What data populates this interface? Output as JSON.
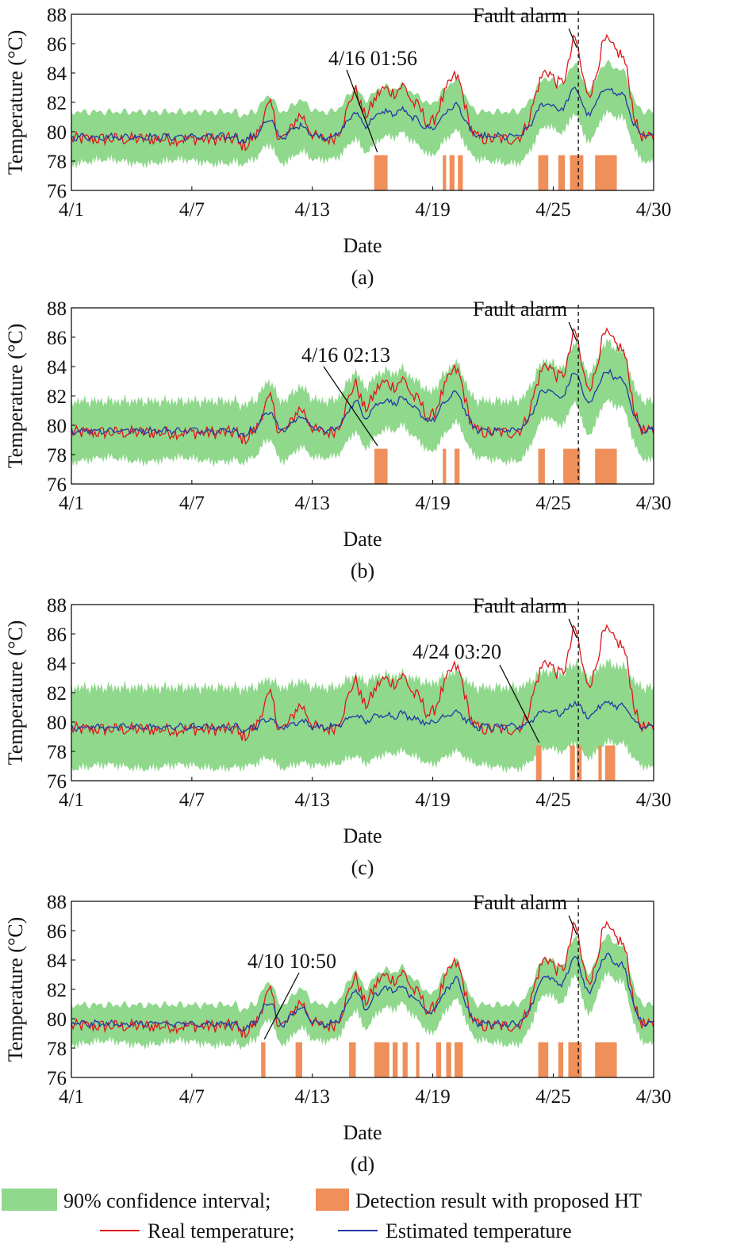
{
  "colors": {
    "band": "#8fd88c",
    "detection": "#ef8f5a",
    "real": "#e0151a",
    "estimated": "#2338a6",
    "axis": "#000000"
  },
  "legend": {
    "band_label": "90% confidence interval;",
    "detection_label": "Detection result with proposed HT",
    "real_label": "Real temperature;",
    "estimated_label": "Estimated temperature"
  },
  "chart_data": [
    {
      "type": "line",
      "panel_label": "(a)",
      "xlabel": "Date",
      "ylabel": "Temperature (°C)",
      "xlim": [
        "4/1",
        "4/30"
      ],
      "ylim": [
        76,
        88
      ],
      "xticks": [
        "4/1",
        "4/7",
        "4/13",
        "4/19",
        "4/25",
        "4/30"
      ],
      "yticks": [
        76,
        78,
        80,
        82,
        84,
        86,
        88
      ],
      "fault_alarm": {
        "label": "Fault alarm",
        "date": "4/26 06:00"
      },
      "annotation": {
        "label": "4/16 01:56",
        "date": "4/16 01:56"
      },
      "band_halfwidth": 1.7,
      "estimate_gain": 0.5,
      "detections": [
        [
          "4/16 01:56",
          "4/16 18:00"
        ],
        [
          "4/19 12:00",
          "4/19 16:00"
        ],
        [
          "4/19 20:00",
          "4/20 02:00"
        ],
        [
          "4/20 06:00",
          "4/20 12:00"
        ],
        [
          "4/24 06:00",
          "4/24 18:00"
        ],
        [
          "4/25 06:00",
          "4/25 14:00"
        ],
        [
          "4/25 20:00",
          "4/26 12:00"
        ],
        [
          "4/27 02:00",
          "4/28 04:00"
        ]
      ]
    },
    {
      "type": "line",
      "panel_label": "(b)",
      "xlabel": "Date",
      "ylabel": "Temperature (°C)",
      "xlim": [
        "4/1",
        "4/30"
      ],
      "ylim": [
        76,
        88
      ],
      "xticks": [
        "4/1",
        "4/7",
        "4/13",
        "4/19",
        "4/25",
        "4/30"
      ],
      "yticks": [
        76,
        78,
        80,
        82,
        84,
        86,
        88
      ],
      "fault_alarm": {
        "label": "Fault alarm",
        "date": "4/26 06:00"
      },
      "annotation": {
        "label": "4/16 02:13",
        "date": "4/16 02:13"
      },
      "band_halfwidth": 2.0,
      "estimate_gain": 0.6,
      "detections": [
        [
          "4/16 02:13",
          "4/16 18:00"
        ],
        [
          "4/19 12:00",
          "4/19 16:00"
        ],
        [
          "4/20 02:00",
          "4/20 08:00"
        ],
        [
          "4/24 06:00",
          "4/24 14:00"
        ],
        [
          "4/25 12:00",
          "4/26 08:00"
        ],
        [
          "4/27 02:00",
          "4/28 04:00"
        ]
      ]
    },
    {
      "type": "line",
      "panel_label": "(c)",
      "xlabel": "Date",
      "ylabel": "Temperature (°C)",
      "xlim": [
        "4/1",
        "4/30"
      ],
      "ylim": [
        76,
        88
      ],
      "xticks": [
        "4/1",
        "4/7",
        "4/13",
        "4/19",
        "4/25",
        "4/30"
      ],
      "yticks": [
        76,
        78,
        80,
        82,
        84,
        86,
        88
      ],
      "fault_alarm": {
        "label": "Fault alarm",
        "date": "4/26 06:00"
      },
      "annotation": {
        "label": "4/24 03:20",
        "date": "4/24 03:20"
      },
      "band_halfwidth": 2.7,
      "estimate_gain": 0.25,
      "detections": [
        [
          "4/24 03:20",
          "4/24 10:00"
        ],
        [
          "4/25 20:00",
          "4/26 02:00"
        ],
        [
          "4/26 04:00",
          "4/26 10:00"
        ],
        [
          "4/27 06:00",
          "4/27 10:00"
        ],
        [
          "4/27 14:00",
          "4/28 02:00"
        ]
      ]
    },
    {
      "type": "line",
      "panel_label": "(d)",
      "xlabel": "Date",
      "ylabel": "Temperature (°C)",
      "xlim": [
        "4/1",
        "4/30"
      ],
      "ylim": [
        76,
        88
      ],
      "xticks": [
        "4/1",
        "4/7",
        "4/13",
        "4/19",
        "4/25",
        "4/30"
      ],
      "yticks": [
        76,
        78,
        80,
        82,
        84,
        86,
        88
      ],
      "fault_alarm": {
        "label": "Fault alarm",
        "date": "4/26 06:00"
      },
      "annotation": {
        "label": "4/10 10:50",
        "date": "4/10 10:50"
      },
      "band_halfwidth": 1.3,
      "estimate_gain": 0.7,
      "detections": [
        [
          "4/10 10:50",
          "4/10 16:00"
        ],
        [
          "4/12 04:00",
          "4/12 12:00"
        ],
        [
          "4/14 20:00",
          "4/15 04:00"
        ],
        [
          "4/16 02:00",
          "4/16 20:00"
        ],
        [
          "4/17 00:00",
          "4/17 06:00"
        ],
        [
          "4/17 12:00",
          "4/17 18:00"
        ],
        [
          "4/18 04:00",
          "4/18 08:00"
        ],
        [
          "4/19 04:00",
          "4/19 10:00"
        ],
        [
          "4/19 16:00",
          "4/19 22:00"
        ],
        [
          "4/20 02:00",
          "4/20 12:00"
        ],
        [
          "4/24 06:00",
          "4/24 18:00"
        ],
        [
          "4/25 06:00",
          "4/25 12:00"
        ],
        [
          "4/25 18:00",
          "4/26 10:00"
        ],
        [
          "4/27 02:00",
          "4/28 04:00"
        ]
      ]
    }
  ]
}
